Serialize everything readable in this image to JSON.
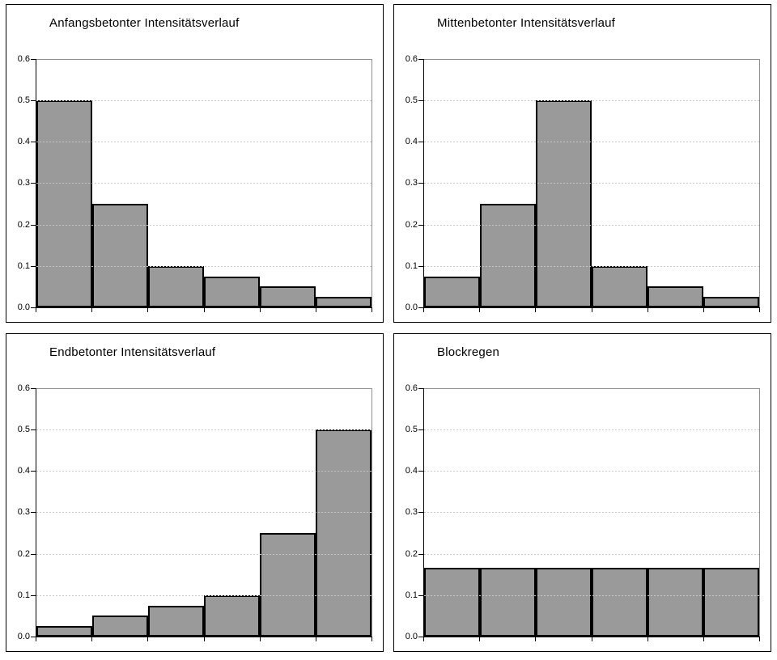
{
  "figure": {
    "description_visible_text_only": "four bar chart panels",
    "background": "#ffffff"
  },
  "colors": {
    "bar_fill": "#9a9a9a",
    "bar_border": "#000000",
    "axis": "#000000",
    "gridline": "#c6c6c6",
    "plot_frame": "#8e8e8e",
    "panel_border": "#000000",
    "text": "#000000",
    "background": "#ffffff"
  },
  "chart_data": [
    {
      "type": "bar",
      "title": "Anfangsbetonter Intensitätsverlauf",
      "values": [
        0.5,
        0.25,
        0.1,
        0.075,
        0.05,
        0.025
      ],
      "categories": [
        "",
        "",
        "",
        "",
        "",
        ""
      ],
      "xlabel": "",
      "ylabel": "",
      "ylim": [
        0,
        0.6
      ],
      "y_tick_labels": [
        "0.0",
        "0.1",
        "0.2",
        "0.3",
        "0.4",
        "0.5",
        "0.6"
      ],
      "x_tick_labels": [],
      "grid": "horizontal-dashed",
      "legend_position": "none"
    },
    {
      "type": "bar",
      "title": "Mittenbetonter Intensitätsverlauf",
      "values": [
        0.075,
        0.25,
        0.5,
        0.1,
        0.05,
        0.025
      ],
      "categories": [
        "",
        "",
        "",
        "",
        "",
        ""
      ],
      "xlabel": "",
      "ylabel": "",
      "ylim": [
        0,
        0.6
      ],
      "y_tick_labels": [
        "0.0",
        "0.1",
        "0.2",
        "0.3",
        "0.4",
        "0.5",
        "0.6"
      ],
      "x_tick_labels": [],
      "grid": "horizontal-dashed",
      "legend_position": "none"
    },
    {
      "type": "bar",
      "title": "Endbetonter Intensitätsverlauf",
      "values": [
        0.025,
        0.05,
        0.075,
        0.1,
        0.25,
        0.5
      ],
      "categories": [
        "",
        "",
        "",
        "",
        "",
        ""
      ],
      "xlabel": "",
      "ylabel": "",
      "ylim": [
        0,
        0.6
      ],
      "y_tick_labels": [
        "0.0",
        "0.1",
        "0.2",
        "0.3",
        "0.4",
        "0.5",
        "0.6"
      ],
      "x_tick_labels": [],
      "grid": "horizontal-dashed",
      "legend_position": "none"
    },
    {
      "type": "bar",
      "title": "Blockregen",
      "values": [
        0.1667,
        0.1667,
        0.1667,
        0.1667,
        0.1667,
        0.1667
      ],
      "categories": [
        "",
        "",
        "",
        "",
        "",
        ""
      ],
      "xlabel": "",
      "ylabel": "",
      "ylim": [
        0,
        0.6
      ],
      "y_tick_labels": [
        "0.0",
        "0.1",
        "0.2",
        "0.3",
        "0.4",
        "0.5",
        "0.6"
      ],
      "x_tick_labels": [],
      "grid": "horizontal-dashed",
      "legend_position": "none"
    }
  ]
}
